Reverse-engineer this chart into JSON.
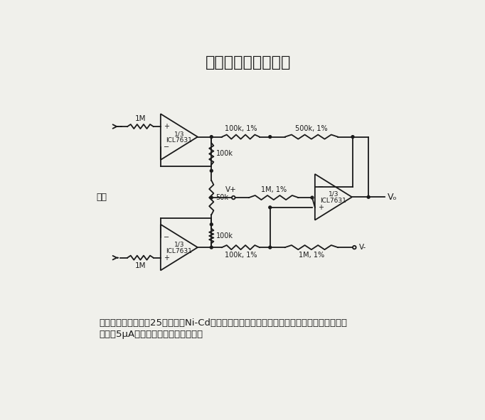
{
  "title": "医用仪器前置放大器",
  "title_fontsize": 16,
  "description_line1": "该电路的电压增益为25，用单个Ni-Cd电池供电。输入电流（来自连接在病人身上的传感器）",
  "description_line2": "限制在5μA以下，否则便视为有故障。",
  "desc_fontsize": 9.5,
  "background_color": "#f0f0eb",
  "line_color": "#1a1a1a",
  "text_color": "#1a1a1a",
  "input_label": "输入",
  "vout_label": "Vₒ",
  "vplus_label": "V+",
  "vminus_label": "V-",
  "op_amp_label_line1": "1/3",
  "op_amp_label_line2": "ICL7631",
  "r_top_input": "1M",
  "r_bot_input": "1M",
  "r_top_feed1": "100k, 1%",
  "r_top_feed2": "500k, 1%",
  "r_mid_top": "100k",
  "r_mid": "50k",
  "r_mid_bot": "100k",
  "r_bot_feed1": "100k, 1%",
  "r_bot_feed2": "1M, 1%",
  "r_vplus": "1M, 1%"
}
